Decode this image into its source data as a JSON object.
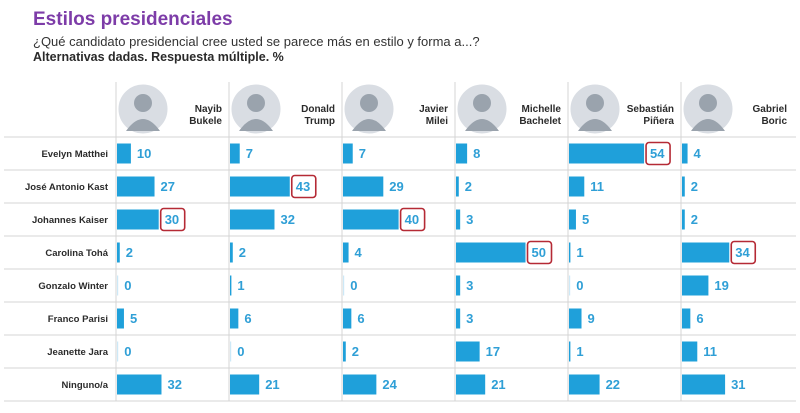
{
  "header": {
    "title": "Estilos presidenciales",
    "subtitle": "¿Qué candidato presidencial cree usted se parece más en estilo y forma a...?",
    "note": "Alternativas dadas. Respuesta múltiple. %"
  },
  "colors": {
    "bar": "#1fa0da",
    "value": "#2f9fd6",
    "highlight": "#b52a35",
    "title": "#7d3ca8"
  },
  "chart_data": {
    "type": "bar",
    "title": "Estilos presidenciales",
    "unit": "%",
    "categories": [
      "Evelyn Matthei",
      "José Antonio Kast",
      "Johannes Kaiser",
      "Carolina Tohá",
      "Gonzalo Winter",
      "Franco Parisi",
      "Jeanette Jara",
      "Ninguno/a"
    ],
    "series": [
      {
        "name": [
          "Nayib",
          "Bukele"
        ],
        "values": [
          10,
          27,
          30,
          2,
          0,
          5,
          0,
          32
        ],
        "highlight": 2
      },
      {
        "name": [
          "Donald",
          "Trump"
        ],
        "values": [
          7,
          43,
          32,
          2,
          1,
          6,
          0,
          21
        ],
        "highlight": 1
      },
      {
        "name": [
          "Javier",
          "Milei"
        ],
        "values": [
          7,
          29,
          40,
          4,
          0,
          6,
          2,
          24
        ],
        "highlight": 2
      },
      {
        "name": [
          "Michelle",
          "Bachelet"
        ],
        "values": [
          8,
          2,
          3,
          50,
          3,
          3,
          17,
          21
        ],
        "highlight": 3
      },
      {
        "name": [
          "Sebastián",
          "Piñera"
        ],
        "values": [
          54,
          11,
          5,
          1,
          0,
          9,
          1,
          22
        ],
        "highlight": 0
      },
      {
        "name": [
          "Gabriel",
          "Boric"
        ],
        "values": [
          4,
          2,
          2,
          34,
          19,
          6,
          11,
          31
        ],
        "highlight": 3
      }
    ],
    "xlim": [
      0,
      60
    ]
  }
}
